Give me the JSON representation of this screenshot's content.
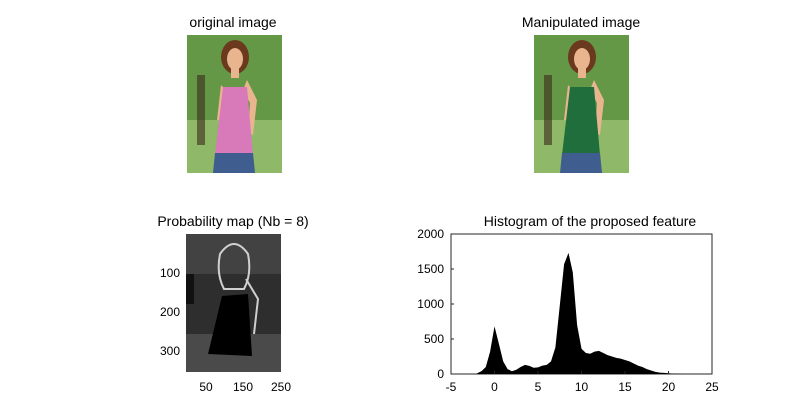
{
  "panels": {
    "original": {
      "title": "original image"
    },
    "manipulated": {
      "title": "Manipulated image"
    },
    "probability": {
      "title": "Probability map (Nb = 8)",
      "xticks": [
        "50",
        "150",
        "250"
      ],
      "yticks": [
        "100",
        "200",
        "300"
      ]
    }
  },
  "colors": {
    "grass_top": "#4f8a2e",
    "grass_bottom": "#8fb868",
    "sky": "#dfe9d6",
    "skin": "#e9b58f",
    "hair": "#6b3a1e",
    "top_original": "#d879b9",
    "top_manipulated": "#1f6e3c",
    "jeans": "#3f5d8f",
    "histogram_fill": "#000000"
  },
  "chart_data": {
    "type": "histogram",
    "title": "Histogram of the proposed feature",
    "xlabel": "",
    "ylabel": "",
    "xlim": [
      -5,
      25
    ],
    "ylim": [
      0,
      2000
    ],
    "xticks": [
      -5,
      0,
      5,
      10,
      15,
      20,
      25
    ],
    "yticks": [
      0,
      500,
      1000,
      1500,
      2000
    ],
    "x": [
      -2,
      -1.5,
      -1,
      -0.5,
      0,
      0.5,
      1,
      1.5,
      2,
      2.5,
      3,
      3.5,
      4,
      4.5,
      5,
      5.5,
      6,
      6.5,
      7,
      7.5,
      8,
      8.5,
      9,
      9.5,
      10,
      10.5,
      11,
      11.5,
      12,
      12.5,
      13,
      13.5,
      14,
      14.5,
      15,
      15.5,
      16,
      16.5,
      17,
      17.5,
      18,
      18.5,
      19,
      19.5,
      20,
      20.5,
      21,
      21.5,
      22
    ],
    "values": [
      10,
      40,
      100,
      320,
      680,
      430,
      180,
      70,
      40,
      60,
      100,
      130,
      115,
      90,
      95,
      120,
      130,
      180,
      380,
      980,
      1570,
      1730,
      1450,
      700,
      360,
      300,
      290,
      320,
      330,
      300,
      270,
      250,
      230,
      220,
      200,
      180,
      150,
      120,
      100,
      70,
      50,
      30,
      20,
      15,
      10,
      5,
      3,
      2,
      0
    ]
  }
}
